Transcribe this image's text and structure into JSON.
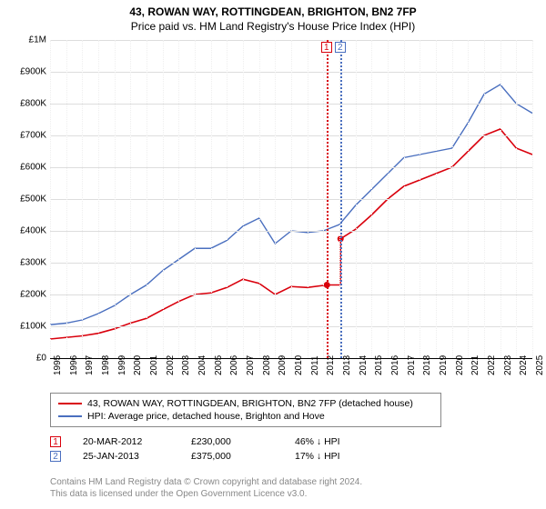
{
  "title1": "43, ROWAN WAY, ROTTINGDEAN, BRIGHTON, BN2 7FP",
  "title2": "Price paid vs. HM Land Registry's House Price Index (HPI)",
  "chart": {
    "type": "line",
    "background": "#ffffff",
    "grid_color": "#dddddd",
    "x_years": [
      1995,
      1996,
      1997,
      1998,
      1999,
      2000,
      2001,
      2002,
      2003,
      2004,
      2005,
      2006,
      2007,
      2008,
      2009,
      2010,
      2011,
      2012,
      2013,
      2014,
      2015,
      2016,
      2017,
      2018,
      2019,
      2020,
      2021,
      2022,
      2023,
      2024,
      2025
    ],
    "y_ticks": [
      0,
      100000,
      200000,
      300000,
      400000,
      500000,
      600000,
      700000,
      800000,
      900000,
      1000000
    ],
    "y_tick_labels": [
      "£0",
      "£100K",
      "£200K",
      "£300K",
      "£400K",
      "£500K",
      "£600K",
      "£700K",
      "£800K",
      "£900K",
      "£1M"
    ],
    "ylim": [
      0,
      1000000
    ],
    "xlim": [
      1995,
      2025
    ],
    "label_fontsize": 10,
    "series": [
      {
        "name": "price_paid",
        "label": "43, ROWAN WAY, ROTTINGDEAN, BRIGHTON, BN2 7FP (detached house)",
        "color": "#d9000c",
        "line_width": 1.6,
        "x": [
          1995,
          1996,
          1997,
          1998,
          1999,
          2000,
          2001,
          2002,
          2003,
          2004,
          2005,
          2006,
          2007,
          2008,
          2009,
          2010,
          2011,
          2012.22,
          2012.23,
          2013.06,
          2013.07,
          2014,
          2015,
          2016,
          2017,
          2018,
          2019,
          2020,
          2021,
          2022,
          2023,
          2024,
          2025
        ],
        "y": [
          60000,
          65000,
          70000,
          78000,
          92000,
          110000,
          125000,
          152000,
          178000,
          200000,
          205000,
          222000,
          248000,
          235000,
          200000,
          225000,
          222000,
          230000,
          230000,
          230000,
          375000,
          405000,
          450000,
          500000,
          540000,
          560000,
          580000,
          600000,
          650000,
          700000,
          720000,
          660000,
          640000
        ]
      },
      {
        "name": "hpi",
        "label": "HPI: Average price, detached house, Brighton and Hove",
        "color": "#4a6fbf",
        "line_width": 1.4,
        "x": [
          1995,
          1996,
          1997,
          1998,
          1999,
          2000,
          2001,
          2002,
          2003,
          2004,
          2005,
          2006,
          2007,
          2008,
          2009,
          2010,
          2011,
          2012,
          2013,
          2014,
          2015,
          2016,
          2017,
          2018,
          2019,
          2020,
          2021,
          2022,
          2023,
          2024,
          2025
        ],
        "y": [
          105000,
          110000,
          120000,
          140000,
          165000,
          200000,
          230000,
          275000,
          310000,
          345000,
          345000,
          370000,
          415000,
          440000,
          360000,
          400000,
          395000,
          400000,
          420000,
          480000,
          530000,
          580000,
          630000,
          640000,
          650000,
          660000,
          740000,
          830000,
          860000,
          800000,
          770000
        ]
      }
    ],
    "markers": [
      {
        "n": "1",
        "x_year": 2012.22,
        "color": "#d9000c"
      },
      {
        "n": "2",
        "x_year": 2013.07,
        "color": "#4a6fbf"
      }
    ],
    "sale_points": [
      {
        "x_year": 2012.22,
        "y": 230000,
        "color": "#d9000c"
      },
      {
        "x_year": 2013.07,
        "y": 375000,
        "color": "#d9000c"
      }
    ]
  },
  "legend": {
    "row1_color": "#d9000c",
    "row2_color": "#4a6fbf"
  },
  "sales": [
    {
      "n": "1",
      "box_color": "#d9000c",
      "date": "20-MAR-2012",
      "price": "£230,000",
      "delta": "46% ↓ HPI"
    },
    {
      "n": "2",
      "box_color": "#4a6fbf",
      "date": "25-JAN-2013",
      "price": "£375,000",
      "delta": "17% ↓ HPI"
    }
  ],
  "footer": {
    "line1": "Contains HM Land Registry data © Crown copyright and database right 2024.",
    "line2": "This data is licensed under the Open Government Licence v3.0."
  }
}
